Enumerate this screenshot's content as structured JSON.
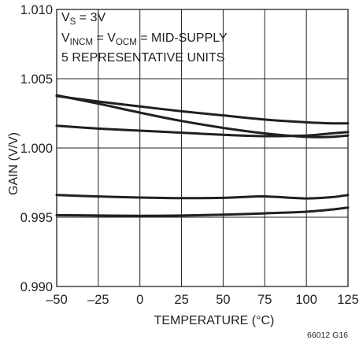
{
  "chart_data": {
    "type": "line",
    "xlabel": "TEMPERATURE (°C)",
    "ylabel": "GAIN (V/V)",
    "xlim": [
      -50,
      125
    ],
    "ylim": [
      0.99,
      1.01
    ],
    "x_ticks": [
      -50,
      -25,
      0,
      25,
      50,
      75,
      100,
      125
    ],
    "x_tick_labels": [
      "–50",
      "–25",
      "0",
      "25",
      "50",
      "75",
      "100",
      "125"
    ],
    "y_ticks": [
      0.99,
      0.995,
      1.0,
      1.005,
      1.01
    ],
    "y_tick_labels": [
      "0.990",
      "0.995",
      "1.000",
      "1.005",
      "1.010"
    ],
    "grid": true,
    "line_color": "#231f20",
    "annotations": {
      "vs": {
        "main": "V",
        "sub": "S",
        "rest": " = 3V"
      },
      "vincm": {
        "main1": "V",
        "sub1": "INCM",
        "mid": " = V",
        "sub2": "OCM",
        "rest": " = MID-SUPPLY"
      },
      "units": "5 REPRESENTATIVE UNITS"
    },
    "figure_id": "66012 G16",
    "series": [
      {
        "x": [
          -50,
          -25,
          0,
          25,
          50,
          75,
          100,
          115,
          125
        ],
        "values": [
          1.00375,
          1.00335,
          1.003,
          1.00265,
          1.00235,
          1.00205,
          1.00185,
          1.00178,
          1.00178
        ]
      },
      {
        "x": [
          -50,
          -25,
          0,
          25,
          50,
          75,
          100,
          115,
          125
        ],
        "values": [
          1.0038,
          1.0032,
          1.00255,
          1.00195,
          1.00145,
          1.00105,
          1.0008,
          1.0008,
          1.0009
        ]
      },
      {
        "x": [
          -50,
          -25,
          0,
          25,
          50,
          75,
          100,
          115,
          125
        ],
        "values": [
          1.0016,
          1.0014,
          1.00125,
          1.0011,
          1.00095,
          1.00085,
          1.0009,
          1.00105,
          1.00115
        ]
      },
      {
        "x": [
          -50,
          -25,
          0,
          25,
          50,
          70,
          80,
          100,
          115,
          125
        ],
        "values": [
          0.9966,
          0.9965,
          0.99642,
          0.99638,
          0.9964,
          0.9965,
          0.99648,
          0.99636,
          0.99645,
          0.9966
        ]
      },
      {
        "x": [
          -50,
          -25,
          0,
          25,
          50,
          75,
          100,
          115,
          125
        ],
        "values": [
          0.99515,
          0.99512,
          0.9951,
          0.99512,
          0.99518,
          0.99528,
          0.9954,
          0.99555,
          0.9957
        ]
      }
    ]
  }
}
